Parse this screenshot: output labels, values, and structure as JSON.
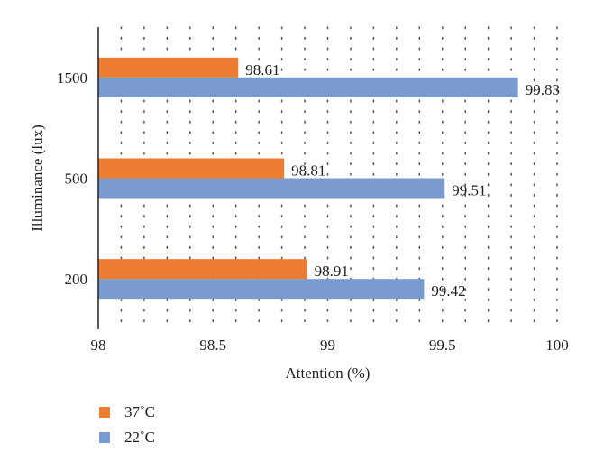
{
  "chart_data": {
    "type": "bar",
    "orientation": "horizontal",
    "categories": [
      "200",
      "500",
      "1500"
    ],
    "series": [
      {
        "name": "37˚C",
        "values": [
          98.91,
          98.81,
          98.61
        ],
        "color": "#ED7D31"
      },
      {
        "name": "22˚C",
        "values": [
          99.42,
          99.51,
          99.83
        ],
        "color": "#7A9BD0"
      }
    ],
    "xlabel": "Attention (%)",
    "ylabel": "Illuminance (lux)",
    "xlim": [
      98,
      100
    ],
    "xticks": [
      "98",
      "98.5",
      "99",
      "99.5",
      "100"
    ],
    "grid": "dotted vertical",
    "legend": "bottom-left"
  }
}
